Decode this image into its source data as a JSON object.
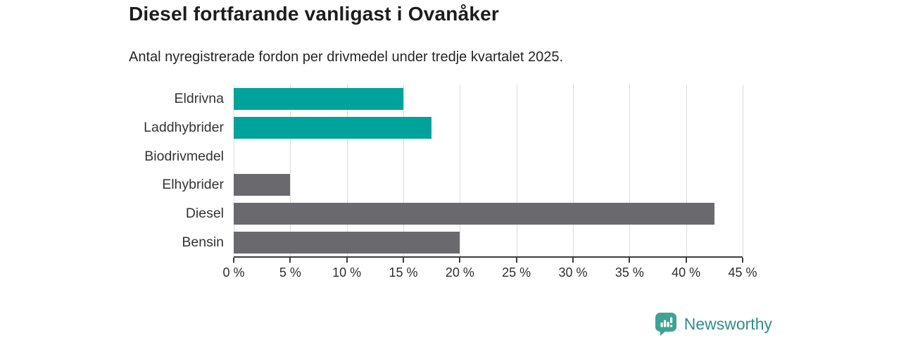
{
  "header": {
    "title": "Diesel fortfarande vanligast i Ovanåker",
    "subtitle": "Antal nyregistrerade fordon per drivmedel under tredje kvartalet 2025."
  },
  "chart_data": {
    "type": "bar",
    "orientation": "horizontal",
    "title": "Diesel fortfarande vanligast i Ovanåker",
    "subtitle": "Antal nyregistrerade fordon per drivmedel under tredje kvartalet 2025.",
    "categories": [
      "Eldrivna",
      "Laddhybrider",
      "Biodrivmedel",
      "Elhybrider",
      "Diesel",
      "Bensin"
    ],
    "values": [
      15,
      17.5,
      0,
      5,
      42.5,
      20
    ],
    "unit": "%",
    "bar_colors": [
      "#00A39B",
      "#00A39B",
      "#00A39B",
      "#6A6A6E",
      "#6A6A6E",
      "#6A6A6E"
    ],
    "xlim": [
      0,
      45
    ],
    "x_ticks": [
      0,
      5,
      10,
      15,
      20,
      25,
      30,
      35,
      40,
      45
    ],
    "x_tick_labels": [
      "0 %",
      "5 %",
      "10 %",
      "15 %",
      "20 %",
      "25 %",
      "30 %",
      "35 %",
      "40 %",
      "45 %"
    ],
    "grid": "vertical",
    "legend": "none"
  },
  "colors": {
    "highlight_bar": "#00A39B",
    "default_bar": "#6A6A6E",
    "gridline": "#dcdcdc",
    "axis": "#3c3c3c",
    "title_text": "#1d1d1d",
    "label_text": "#333333",
    "brand_text": "#318c8c",
    "brand_icon": "#3FA392"
  },
  "footer": {
    "brand": "Newsworthy"
  }
}
